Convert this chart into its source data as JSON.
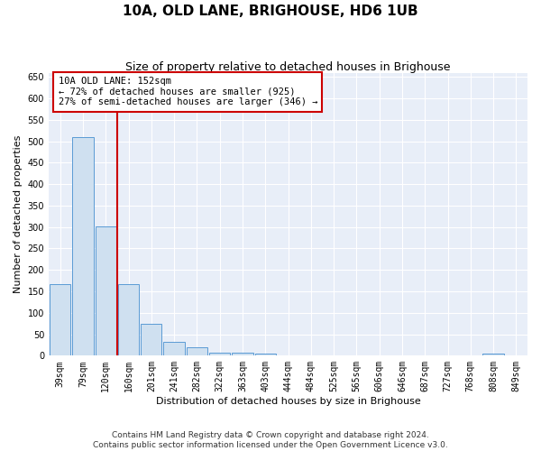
{
  "title": "10A, OLD LANE, BRIGHOUSE, HD6 1UB",
  "subtitle": "Size of property relative to detached houses in Brighouse",
  "xlabel": "Distribution of detached houses by size in Brighouse",
  "ylabel": "Number of detached properties",
  "categories": [
    "39sqm",
    "79sqm",
    "120sqm",
    "160sqm",
    "201sqm",
    "241sqm",
    "282sqm",
    "322sqm",
    "363sqm",
    "403sqm",
    "444sqm",
    "484sqm",
    "525sqm",
    "565sqm",
    "606sqm",
    "646sqm",
    "687sqm",
    "727sqm",
    "768sqm",
    "808sqm",
    "849sqm"
  ],
  "values": [
    167,
    510,
    302,
    167,
    75,
    32,
    20,
    8,
    8,
    5,
    0,
    0,
    0,
    0,
    0,
    0,
    0,
    0,
    0,
    5,
    0
  ],
  "bar_color": "#cfe0f0",
  "bar_edge_color": "#5b9bd5",
  "background_color": "#e8eef8",
  "grid_color": "#ffffff",
  "vline_color": "#cc0000",
  "vline_position": 2.5,
  "annotation_text": "10A OLD LANE: 152sqm\n← 72% of detached houses are smaller (925)\n27% of semi-detached houses are larger (346) →",
  "annotation_box_color": "#cc0000",
  "ylim": [
    0,
    660
  ],
  "yticks": [
    0,
    50,
    100,
    150,
    200,
    250,
    300,
    350,
    400,
    450,
    500,
    550,
    600,
    650
  ],
  "footer": "Contains HM Land Registry data © Crown copyright and database right 2024.\nContains public sector information licensed under the Open Government Licence v3.0.",
  "title_fontsize": 11,
  "subtitle_fontsize": 9,
  "label_fontsize": 8,
  "tick_fontsize": 7,
  "annotation_fontsize": 7.5,
  "footer_fontsize": 6.5
}
